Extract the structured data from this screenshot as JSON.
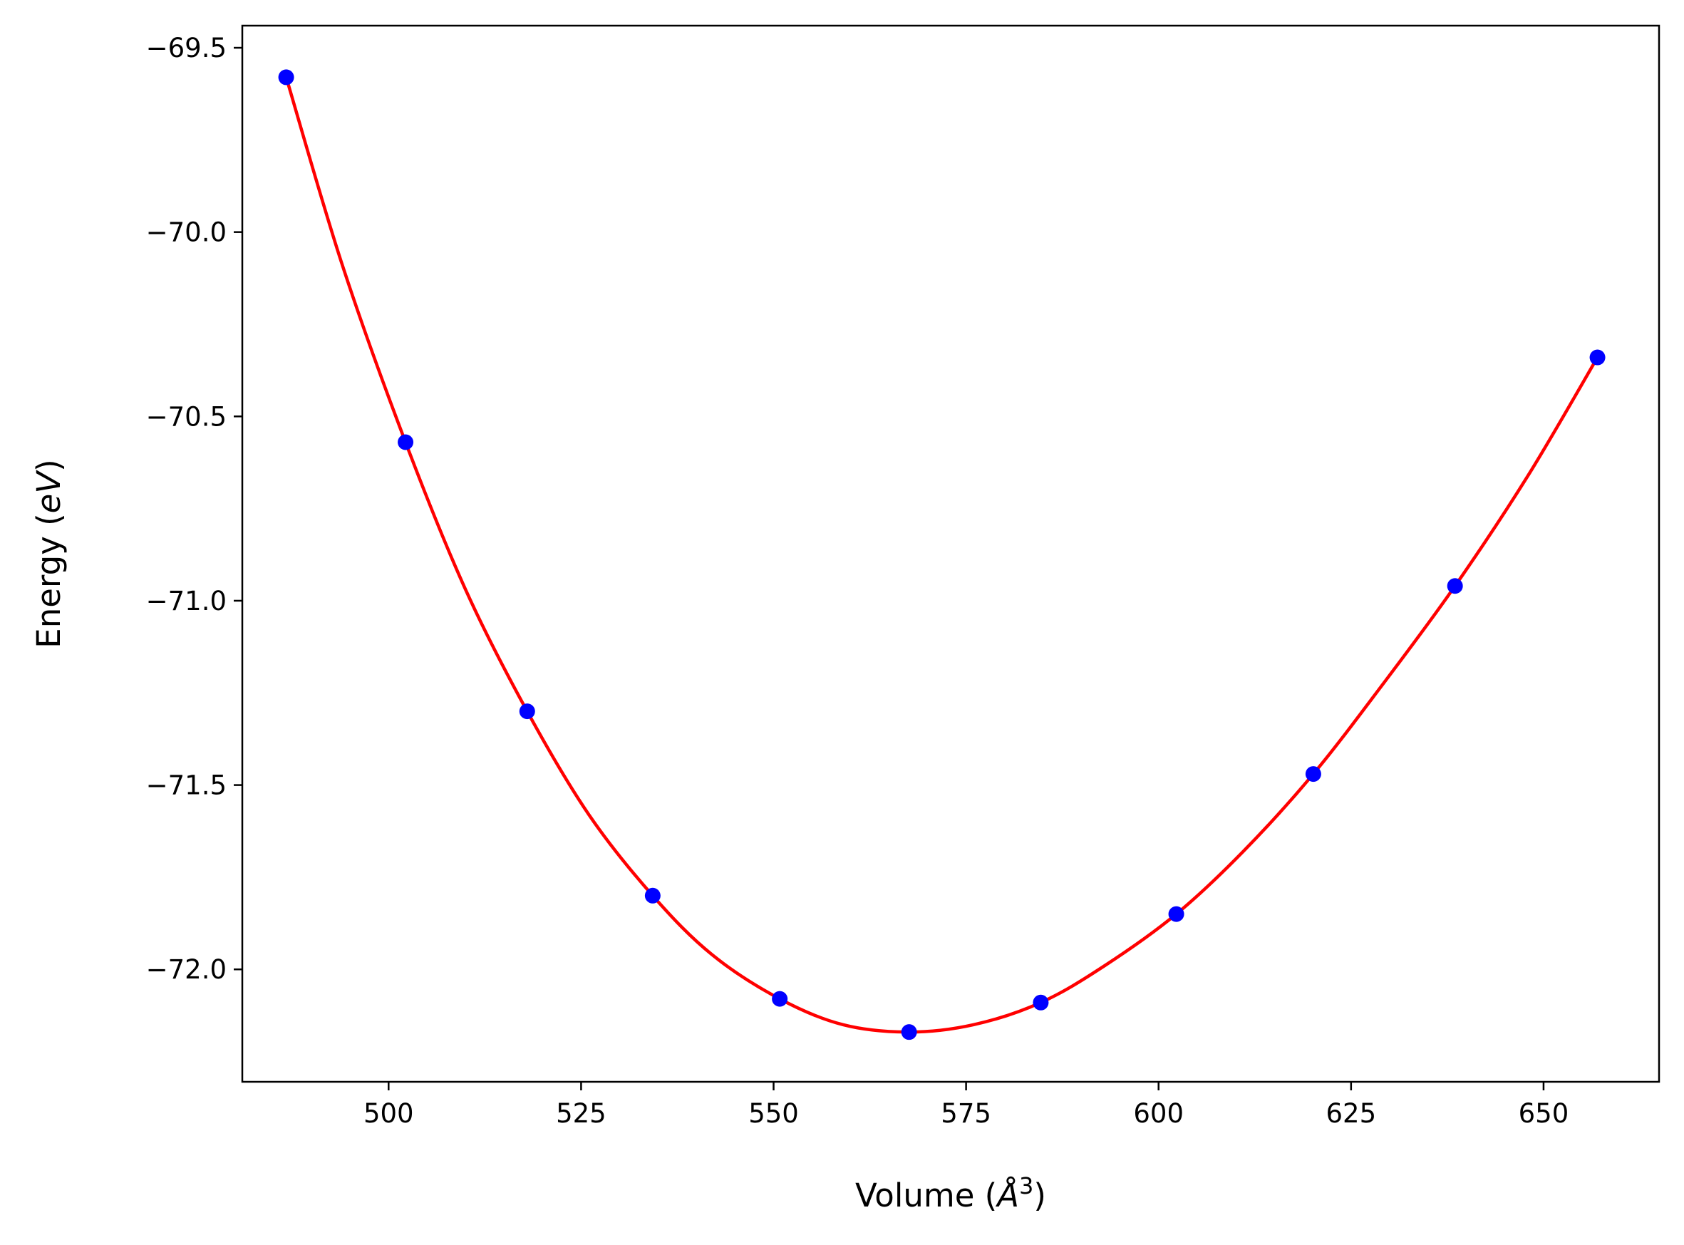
{
  "chart_data": {
    "type": "scatter",
    "title": "",
    "xlabel_parts": {
      "pre": "Volume (",
      "italic": "Å",
      "sup": "3",
      "post": ")"
    },
    "ylabel_parts": {
      "pre": "Energy (",
      "italic": "eV",
      "post": ")"
    },
    "xlim": [
      481.0,
      665.0
    ],
    "ylim": [
      -72.305,
      -69.44
    ],
    "x_ticks": [
      500,
      525,
      550,
      575,
      600,
      625,
      650
    ],
    "x_tick_labels": [
      "500",
      "525",
      "550",
      "575",
      "600",
      "625",
      "650"
    ],
    "y_ticks": [
      -69.5,
      -70.0,
      -70.5,
      -71.0,
      -71.5,
      -72.0
    ],
    "y_tick_labels": [
      "−69.5",
      "−70.0",
      "−70.5",
      "−71.0",
      "−71.5",
      "−72.0"
    ],
    "grid": false,
    "legend": null,
    "series": [
      {
        "kind": "points",
        "color": "#0000ff",
        "x": [
          486.7,
          502.2,
          518.0,
          534.3,
          550.8,
          567.6,
          584.7,
          602.3,
          620.1,
          638.5,
          657.0
        ],
        "y": [
          -69.58,
          -70.57,
          -71.3,
          -71.8,
          -72.08,
          -72.17,
          -72.09,
          -71.85,
          -71.47,
          -70.96,
          -70.34
        ]
      },
      {
        "kind": "fit_curve",
        "color": "#ff0000",
        "x": [
          486.7,
          494.0,
          502.2,
          510.0,
          518.0,
          526.0,
          534.3,
          542.0,
          550.8,
          559.0,
          567.6,
          576.0,
          584.7,
          593.0,
          602.3,
          611.0,
          620.1,
          629.0,
          638.5,
          648.0,
          657.0
        ],
        "y": [
          -69.58,
          -70.09,
          -70.57,
          -70.97,
          -71.3,
          -71.58,
          -71.8,
          -71.96,
          -72.08,
          -72.15,
          -72.17,
          -72.15,
          -72.09,
          -71.99,
          -71.85,
          -71.68,
          -71.47,
          -71.23,
          -70.96,
          -70.66,
          -70.34
        ]
      }
    ]
  }
}
